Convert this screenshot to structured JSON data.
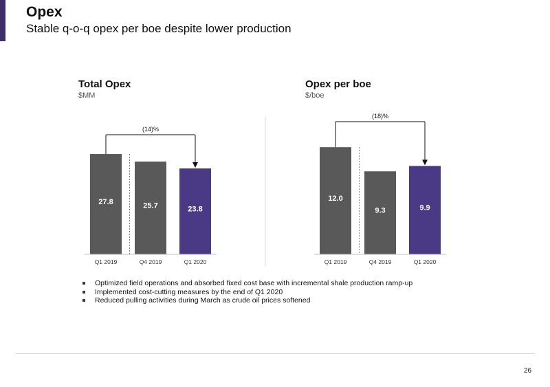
{
  "header": {
    "title": "Opex",
    "subtitle": "Stable q-o-q opex per boe despite lower production"
  },
  "colors": {
    "accent": "#3d2d6b",
    "bar_gray": "#595959",
    "bar_highlight": "#4a3a85"
  },
  "chart_data": [
    {
      "type": "bar",
      "title": "Total Opex",
      "unit": "$MM",
      "categories": [
        "Q1 2019",
        "Q4 2019",
        "Q1 2020"
      ],
      "values": [
        27.8,
        25.7,
        23.8
      ],
      "value_labels": [
        "27.8",
        "25.7",
        "23.8"
      ],
      "highlight_index": 2,
      "ylim": [
        0,
        40
      ],
      "change_label": "(14)%",
      "grid": false
    },
    {
      "type": "bar",
      "title": "Opex per boe",
      "unit": "$/boe",
      "categories": [
        "Q1 2019",
        "Q4 2019",
        "Q1 2020"
      ],
      "values": [
        12.0,
        9.3,
        9.9
      ],
      "value_labels": [
        "12.0",
        "9.3",
        "9.9"
      ],
      "highlight_index": 2,
      "ylim": [
        0,
        16.17
      ],
      "change_label": "(18)%",
      "grid": false
    }
  ],
  "bullets": [
    "Optimized field operations and absorbed fixed cost base with incremental shale production ramp-up",
    "Implemented cost-cutting measures by the end of Q1 2020",
    "Reduced pulling activities during March as crude oil prices softened"
  ],
  "footer": {
    "page_number": "26"
  }
}
